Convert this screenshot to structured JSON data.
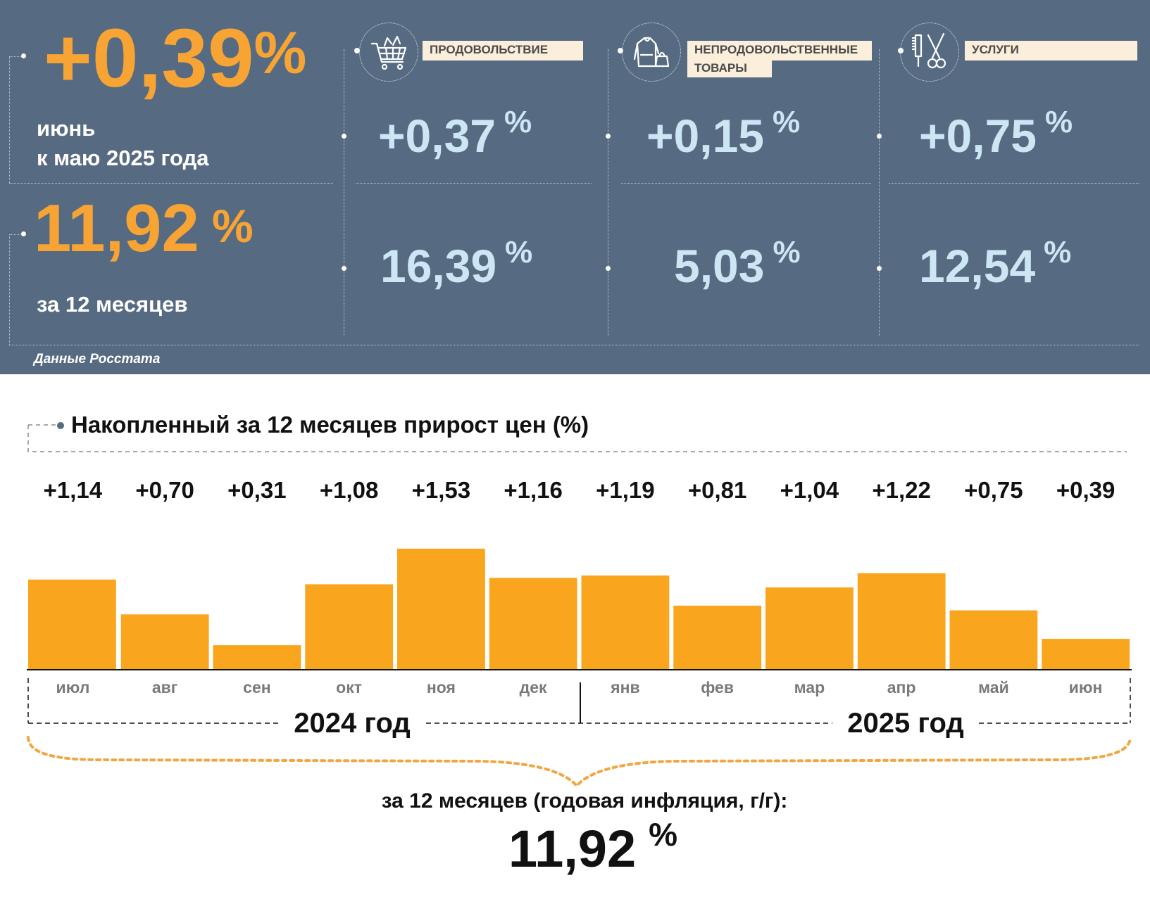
{
  "summary": {
    "month_value": "+0,39",
    "percent": "%",
    "month_label_line1": "июнь",
    "month_label_line2": "к маю 2025 года",
    "year_value": "11,92",
    "year_label": "за 12 месяцев",
    "source": "Данные Росстата"
  },
  "categories": [
    {
      "icon": "shopping-cart-icon",
      "label": "ПРОДОВОЛЬСТВИЕ",
      "label_line2": "",
      "month": "+0,37",
      "year": "16,39"
    },
    {
      "icon": "clothes-icon",
      "label": "НЕПРОДОВОЛЬСТВЕННЫЕ",
      "label_line2": "ТОВАРЫ",
      "month": "+0,15",
      "year": "5,03"
    },
    {
      "icon": "scissors-comb-icon",
      "label": "УСЛУГИ",
      "label_line2": "",
      "month": "+0,75",
      "year": "12,54"
    }
  ],
  "colors": {
    "panel": "#566b82",
    "accent": "#f7a434",
    "value_light": "#cde6f4",
    "bar": "#f9a51e"
  },
  "chart_data": {
    "type": "bar",
    "title": "Накопленный за 12 месяцев прирост цен (%)",
    "categories": [
      "июл",
      "авг",
      "сен",
      "окт",
      "ноя",
      "дек",
      "янв",
      "фев",
      "мар",
      "апр",
      "май",
      "июн"
    ],
    "values": [
      1.14,
      0.7,
      0.31,
      1.08,
      1.53,
      1.16,
      1.19,
      0.81,
      1.04,
      1.22,
      0.75,
      0.39
    ],
    "value_labels": [
      "+1,14",
      "+0,70",
      "+0,31",
      "+1,08",
      "+1,53",
      "+1,16",
      "+1,19",
      "+0,81",
      "+1,04",
      "+1,22",
      "+0,75",
      "+0,39"
    ],
    "years": [
      {
        "label": "2024 год",
        "months": 6
      },
      {
        "label": "2025 год",
        "months": 6
      }
    ],
    "total_label": "за 12 месяцев (годовая инфляция, г/г):",
    "total_value": "11,92",
    "total_unit": "%",
    "ylim": [
      0,
      1.6
    ]
  }
}
